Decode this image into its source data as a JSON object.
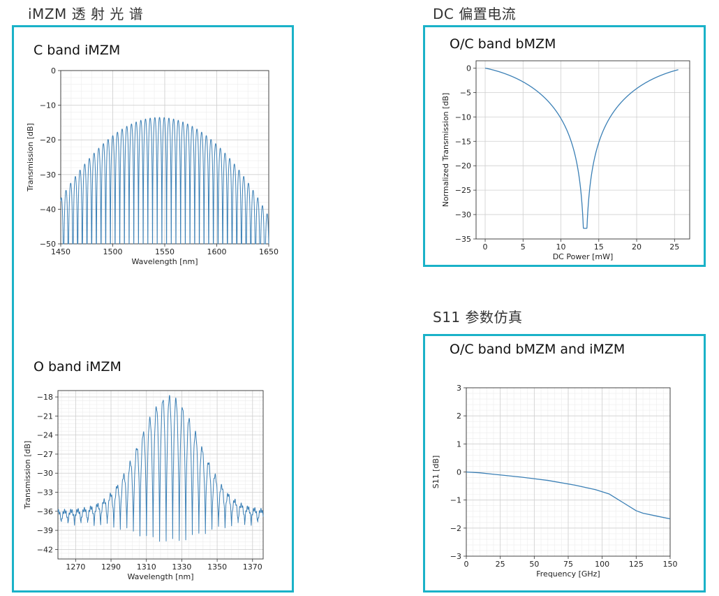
{
  "headings": {
    "imzm": "iMZM 透 射 光 谱",
    "dc": "DC 偏置电流",
    "s11": "S11 参数仿真"
  },
  "accent_color": "#1ab2c8",
  "line_color": "#3a7fb5",
  "chart_data": [
    {
      "id": "c_band",
      "type": "line",
      "title": "C band iMZM",
      "xlabel": "Wavelength [nm]",
      "ylabel": "Transmission [dB]",
      "xlim": [
        1450,
        1650
      ],
      "ylim": [
        -50,
        0
      ],
      "xticks": [
        1450,
        1500,
        1550,
        1600,
        1650
      ],
      "yticks": [
        0,
        -10,
        -20,
        -30,
        -40,
        -50
      ],
      "grid": true,
      "envelope_peak_db": -13.5,
      "envelope_center_nm": 1545,
      "fringe_period_nm": 4.5,
      "fringe_floor_db": -50
    },
    {
      "id": "o_band",
      "type": "line",
      "title": "O band iMZM",
      "xlabel": "Wavelength [nm]",
      "ylabel": "Transmission [dB]",
      "xlim": [
        1260,
        1376
      ],
      "ylim": [
        -43.5,
        -17
      ],
      "xticks": [
        1270,
        1290,
        1310,
        1330,
        1350,
        1370
      ],
      "yticks": [
        -18,
        -21,
        -24,
        -27,
        -30,
        -33,
        -36,
        -39,
        -42
      ],
      "grid": true,
      "envelope_peak_db": -18,
      "envelope_center_nm": 1323,
      "fringe_period_nm": 3.7,
      "noise_floor_db": -36
    },
    {
      "id": "dc_bias",
      "type": "line",
      "title": "O/C band bMZM",
      "xlabel": "DC Power [mW]",
      "ylabel": "Normalized Transmission [dB]",
      "xlim": [
        -1.2,
        27
      ],
      "ylim": [
        -35,
        1.5
      ],
      "xticks": [
        0,
        5,
        10,
        15,
        20,
        25
      ],
      "yticks": [
        0,
        -5,
        -10,
        -15,
        -20,
        -25,
        -30,
        -35
      ],
      "grid": true,
      "x_range": [
        0,
        25.5
      ],
      "min_at_mw": 13.2,
      "min_db": -33.5
    },
    {
      "id": "s11",
      "type": "line",
      "title": "O/C band bMZM and iMZM",
      "xlabel": "Frequency [GHz]",
      "ylabel": "S11 [dB]",
      "xlim": [
        0,
        150
      ],
      "ylim": [
        -3,
        3
      ],
      "xticks": [
        0,
        25,
        50,
        75,
        100,
        125,
        150
      ],
      "yticks": [
        3,
        2,
        1,
        0,
        -1,
        -2,
        -3
      ],
      "grid": true,
      "x": [
        0,
        10,
        20,
        40,
        60,
        80,
        95,
        105,
        115,
        125,
        130,
        140,
        150
      ],
      "y": [
        0,
        -0.03,
        -0.08,
        -0.18,
        -0.3,
        -0.47,
        -0.63,
        -0.78,
        -1.08,
        -1.38,
        -1.47,
        -1.57,
        -1.67
      ]
    }
  ]
}
